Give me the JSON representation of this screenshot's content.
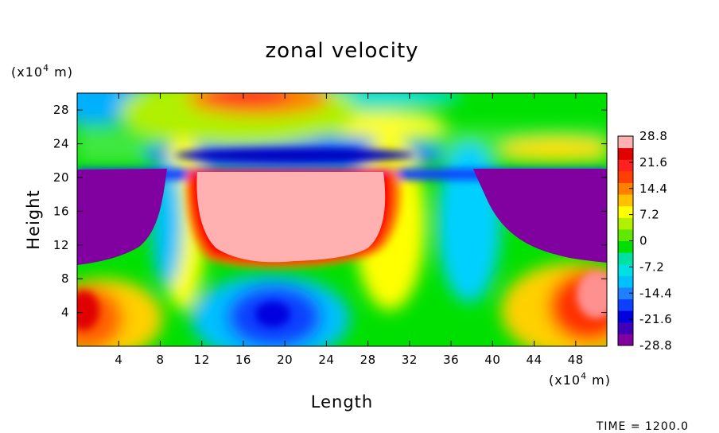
{
  "chart_data": {
    "type": "heatmap",
    "title": "zonal velocity",
    "xlabel": "Length",
    "ylabel": "Height",
    "x_unit_prefix": "(x10",
    "x_unit_exp": "4",
    "x_unit_suffix": " m)",
    "y_unit_prefix": "(x10",
    "y_unit_exp": "4",
    "y_unit_suffix": " m)",
    "xlim": [
      0,
      51
    ],
    "ylim": [
      0,
      30
    ],
    "x_ticks": [
      "4",
      "8",
      "12",
      "16",
      "20",
      "24",
      "28",
      "32",
      "36",
      "40",
      "44",
      "48"
    ],
    "y_ticks": [
      "4",
      "8",
      "12",
      "16",
      "20",
      "24",
      "28"
    ],
    "colorbar": {
      "min": -28.8,
      "max": 28.8,
      "labels": [
        "28.8",
        "21.6",
        "14.4",
        "7.2",
        "0",
        "-7.2",
        "-14.4",
        "-21.6",
        "-28.8"
      ],
      "colors": [
        "#8000a0",
        "#4000b8",
        "#0000e0",
        "#1040ff",
        "#2080ff",
        "#00c0ff",
        "#00e0e0",
        "#00e0a0",
        "#00e000",
        "#60e800",
        "#b0f000",
        "#ffff00",
        "#ffc000",
        "#ff8000",
        "#ff4000",
        "#ff2020",
        "#e00000",
        "#ffb0b0"
      ]
    },
    "features": [
      {
        "x": 5,
        "y": 15.5,
        "value": -28.8
      },
      {
        "x": 46,
        "y": 15.5,
        "value": -28.8
      },
      {
        "x": 20.5,
        "y": 15.5,
        "value": 28.8
      },
      {
        "x": 19.5,
        "y": 3.8,
        "value": -22
      },
      {
        "x": 1.5,
        "y": 4,
        "value": 22
      },
      {
        "x": 49.5,
        "y": 6.5,
        "value": 26
      },
      {
        "x": 19.5,
        "y": 29.5,
        "value": 25
      },
      {
        "x": 24,
        "y": 22.8,
        "value": -20
      },
      {
        "x": 2.5,
        "y": 29.5,
        "value": -18
      },
      {
        "x": 30,
        "y": 29.5,
        "value": -8
      },
      {
        "x": 29,
        "y": 26.3,
        "value": 10
      },
      {
        "x": 47,
        "y": 23,
        "value": 9
      }
    ]
  },
  "footer": {
    "time_label": "TIME = 1200.0"
  }
}
